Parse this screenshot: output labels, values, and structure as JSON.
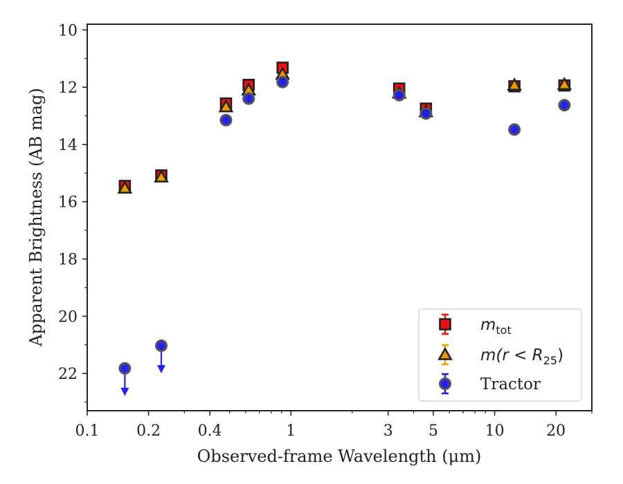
{
  "chart_data": {
    "type": "scatter",
    "xlabel": "Observed-frame Wavelength (μm)",
    "ylabel": "Apparent Brightness (AB mag)",
    "x_scale": "log",
    "xlim": [
      0.1,
      30
    ],
    "ylim": [
      23.3,
      9.8
    ],
    "y_inverted": true,
    "x_ticks": [
      {
        "value": 0.1,
        "label": "0.1"
      },
      {
        "value": 0.2,
        "label": "0.2"
      },
      {
        "value": 0.4,
        "label": "0.4"
      },
      {
        "value": 1,
        "label": "1"
      },
      {
        "value": 3,
        "label": "3"
      },
      {
        "value": 5,
        "label": "5"
      },
      {
        "value": 10,
        "label": "10"
      },
      {
        "value": 20,
        "label": "20"
      }
    ],
    "y_ticks": [
      {
        "value": 10,
        "label": "10"
      },
      {
        "value": 12,
        "label": "12"
      },
      {
        "value": 14,
        "label": "14"
      },
      {
        "value": 16,
        "label": "16"
      },
      {
        "value": 18,
        "label": "18"
      },
      {
        "value": 20,
        "label": "20"
      },
      {
        "value": 22,
        "label": "22"
      }
    ],
    "grid": false,
    "legend_position": "lower-right",
    "legend": [
      {
        "series": "m_tot",
        "label_main": "m",
        "label_sub": "tot",
        "label_tail": ""
      },
      {
        "series": "m_r25",
        "label_main": "m(r < R",
        "label_sub": "25",
        "label_tail": ")"
      },
      {
        "series": "tractor",
        "label_main": "Tractor",
        "label_sub": "",
        "label_tail": ""
      }
    ],
    "series": [
      {
        "key": "m_tot",
        "marker": "square",
        "color": "#ee1111",
        "edge": "#222222",
        "errcolor": "#ee1111",
        "points": [
          {
            "x": 0.153,
            "y": 15.45
          },
          {
            "x": 0.231,
            "y": 15.08
          },
          {
            "x": 0.48,
            "y": 12.57
          },
          {
            "x": 0.62,
            "y": 11.92
          },
          {
            "x": 0.91,
            "y": 11.32
          },
          {
            "x": 3.4,
            "y": 12.05
          },
          {
            "x": 4.6,
            "y": 12.75
          },
          {
            "x": 12.5,
            "y": 11.97
          },
          {
            "x": 22.0,
            "y": 11.94
          }
        ]
      },
      {
        "key": "m_r25",
        "marker": "triangle",
        "color": "#ee9900",
        "edge": "#222222",
        "errcolor": "#f0a500",
        "points": [
          {
            "x": 0.153,
            "y": 15.53
          },
          {
            "x": 0.231,
            "y": 15.14
          },
          {
            "x": 0.48,
            "y": 12.69
          },
          {
            "x": 0.62,
            "y": 12.1
          },
          {
            "x": 0.91,
            "y": 11.55
          },
          {
            "x": 3.4,
            "y": 12.21
          },
          {
            "x": 4.6,
            "y": 12.86
          },
          {
            "x": 12.5,
            "y": 11.93
          },
          {
            "x": 22.0,
            "y": 11.91
          }
        ]
      },
      {
        "key": "tractor",
        "marker": "circle",
        "color": "#1a1aee",
        "edge": "#555555",
        "errcolor": "#2222ee",
        "points": [
          {
            "x": 0.153,
            "y": 21.82,
            "upper_limit": true
          },
          {
            "x": 0.231,
            "y": 21.03,
            "upper_limit": true
          },
          {
            "x": 0.48,
            "y": 13.15
          },
          {
            "x": 0.62,
            "y": 12.4
          },
          {
            "x": 0.91,
            "y": 11.82
          },
          {
            "x": 3.4,
            "y": 12.28
          },
          {
            "x": 4.6,
            "y": 12.92
          },
          {
            "x": 12.5,
            "y": 13.48
          },
          {
            "x": 22.0,
            "y": 12.63
          }
        ]
      }
    ]
  }
}
